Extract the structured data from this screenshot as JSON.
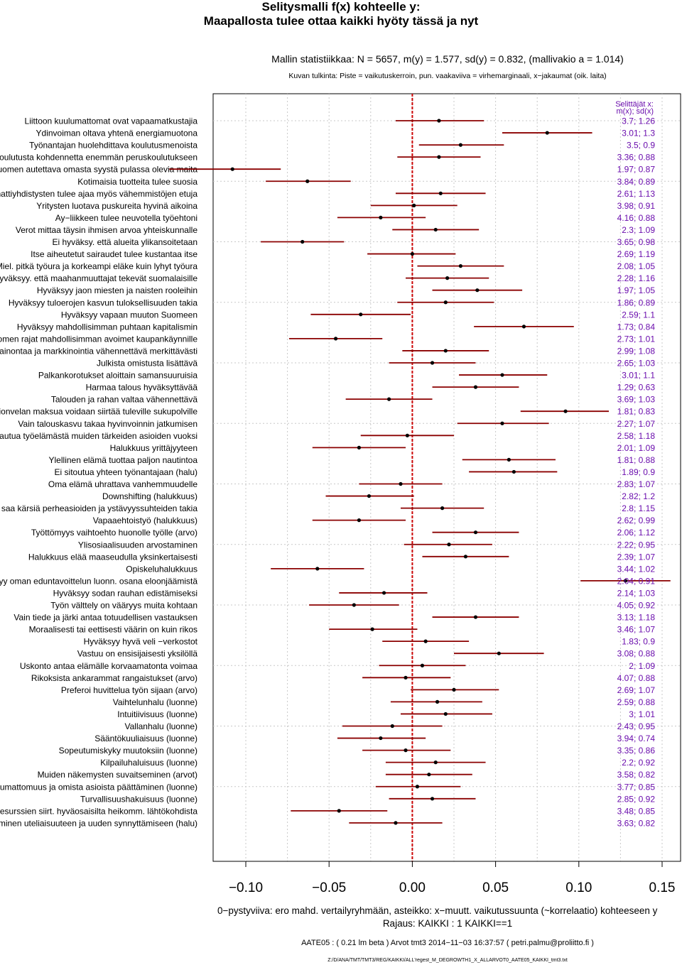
{
  "title": {
    "line1": "Selitysmalli f(x) kohteelle y:",
    "line2": "Maapallosta tulee ottaa kaikki hyöty tässä ja nyt"
  },
  "stats_line": "Mallin statistiikkaa: N = 5657, m(y) = 1.577, sd(y) = 0.832, (mallivakio a = 1.014)",
  "interpretation_line": "Kuvan tulkinta: Piste = vaikutuskerroin, pun. vaakaviiva = virhemarginaali, x−jakaumat (oik. laita)",
  "footer": {
    "line1": "0−pystyviiva: ero mahd. vertailyryhmään, asteikko: x−muutt. vaikutussuunta (~korrelaatio) kohteeseen y",
    "line2": "Rajaus: KAIKKI : 1  KAIKKI==1",
    "line3": "AATE05 : ( 0.21 lm beta )   Arvot tmt3 2014−11−03 16:37:57 ( petri.palmu@proliitto.fi )",
    "line4": "Z:/D/ANA/TMT/TMT3/REG/KAIKKI/ALL'regest_M_DEGROWTH1_X_ALLARVOT0_AATE05_KAIKKI_tmt3.txt"
  },
  "colors": {
    "ci_line": "#8b0000",
    "point": "#000000",
    "zero_line": "#cc0000",
    "stats_text": "#6a0dad",
    "grid": "#c8c8c8"
  },
  "chart_data": {
    "type": "forest",
    "xlim": [
      -0.105,
      0.155
    ],
    "xticks": [
      -0.1,
      -0.05,
      0.0,
      0.05,
      0.1,
      0.15
    ],
    "xtick_labels": [
      "−0.10",
      "−0.05",
      "0.00",
      "0.05",
      "0.10",
      "0.15"
    ],
    "reference_line": 0,
    "stats_header": [
      "Selittäjät x:",
      "m(x); sd(x)"
    ],
    "grid": true,
    "items": [
      {
        "label": "Liittoon kuulumattomat ovat vapaamatkustajia",
        "est": 0.016,
        "lo": -0.01,
        "hi": 0.043,
        "stats": "3.7; 1.26"
      },
      {
        "label": "Ydinvoiman oltava yhtenä energiamuotona",
        "est": 0.081,
        "lo": 0.054,
        "hi": 0.108,
        "stats": "3.01; 1.3"
      },
      {
        "label": "Työnantajan huolehdittava koulutusmenoista",
        "est": 0.029,
        "lo": 0.004,
        "hi": 0.055,
        "stats": "3.5; 0.9"
      },
      {
        "label": "Koulutusta kohdennetta enemmän peruskoulutukseen",
        "est": 0.016,
        "lo": -0.009,
        "hi": 0.041,
        "stats": "3.36; 0.88"
      },
      {
        "label": "Suomen autettava omasta syystä pulassa olevia maita",
        "est": -0.108,
        "lo": -0.146,
        "hi": -0.079,
        "stats": "1.97; 0.87"
      },
      {
        "label": "Kotimaisia tuotteita tulee suosia",
        "est": -0.063,
        "lo": -0.088,
        "hi": -0.037,
        "stats": "3.84; 0.89"
      },
      {
        "label": "Ammattiyhdistysten tulee ajaa myös vähemmistöjen etuja",
        "est": 0.017,
        "lo": -0.01,
        "hi": 0.044,
        "stats": "2.61; 1.13"
      },
      {
        "label": "Yritysten luotava puskureita hyvinä aikoina",
        "est": 0.001,
        "lo": -0.025,
        "hi": 0.027,
        "stats": "3.98; 0.91"
      },
      {
        "label": "Ay−liikkeen tulee neuvotella työehtoni",
        "est": -0.019,
        "lo": -0.045,
        "hi": 0.008,
        "stats": "4.16; 0.88"
      },
      {
        "label": "Verot mittaa täysin ihmisen arvoa yhteiskunnalle",
        "est": 0.014,
        "lo": -0.012,
        "hi": 0.04,
        "stats": "2.3; 1.09"
      },
      {
        "label": "Ei hyväksy. että alueita ylikansoitetaan",
        "est": -0.066,
        "lo": -0.091,
        "hi": -0.041,
        "stats": "3.65; 0.98"
      },
      {
        "label": "Itse aiheutetut sairaudet tulee kustantaa itse",
        "est": 0.0,
        "lo": -0.027,
        "hi": 0.026,
        "stats": "2.69; 1.19"
      },
      {
        "label": "Miel. pitkä työura ja korkeampi eläke kuin lyhyt työura",
        "est": 0.029,
        "lo": 0.003,
        "hi": 0.055,
        "stats": "2.08; 1.05"
      },
      {
        "label": "Hyväksyy. että maahanmuuttajat tekevät suomalaisille",
        "est": 0.021,
        "lo": -0.004,
        "hi": 0.046,
        "stats": "2.28; 1.16"
      },
      {
        "label": "Hyväksyy jaon miesten ja naisten rooleihin",
        "est": 0.039,
        "lo": 0.012,
        "hi": 0.066,
        "stats": "1.97; 1.05"
      },
      {
        "label": "Hyväksyy tuloerojen kasvun tuloksellisuuden takia",
        "est": 0.02,
        "lo": -0.009,
        "hi": 0.049,
        "stats": "1.86; 0.89"
      },
      {
        "label": "Hyväksyy vapaan muuton Suomeen",
        "est": -0.031,
        "lo": -0.061,
        "hi": -0.001,
        "stats": "2.59; 1.1"
      },
      {
        "label": "Hyväksyy mahdollisimman puhtaan kapitalismin",
        "est": 0.067,
        "lo": 0.037,
        "hi": 0.097,
        "stats": "1.73; 0.84"
      },
      {
        "label": "Suomen rajat mahdollisimman avoimet kaupankäynnille",
        "est": -0.046,
        "lo": -0.074,
        "hi": -0.018,
        "stats": "2.73; 1.01"
      },
      {
        "label": "Mainontaa ja markkinointia vähennettävä merkittävästi",
        "est": 0.02,
        "lo": -0.006,
        "hi": 0.046,
        "stats": "2.99; 1.08"
      },
      {
        "label": "Julkista omistusta lisättävä",
        "est": 0.012,
        "lo": -0.014,
        "hi": 0.038,
        "stats": "2.65; 1.03"
      },
      {
        "label": "Palkankorotukset aloittain samansuuruisia",
        "est": 0.054,
        "lo": 0.028,
        "hi": 0.081,
        "stats": "3.01; 1.1"
      },
      {
        "label": "Harmaa talous hyväksyttävää",
        "est": 0.038,
        "lo": 0.012,
        "hi": 0.064,
        "stats": "1.29; 0.63"
      },
      {
        "label": "Talouden ja rahan valtaa vähennettävä",
        "est": -0.014,
        "lo": -0.04,
        "hi": 0.012,
        "stats": "3.69; 1.03"
      },
      {
        "label": "Valtionvelan maksua voidaan siirtää tuleville sukupolville",
        "est": 0.092,
        "lo": 0.065,
        "hi": 0.118,
        "stats": "1.81; 0.83"
      },
      {
        "label": "Vain talouskasvu takaa hyvinvoinnin jatkumisen",
        "est": 0.054,
        "lo": 0.027,
        "hi": 0.082,
        "stats": "2.27; 1.07"
      },
      {
        "label": "Halukkuus irtautua työelämästä muiden tärkeiden asioiden vuoksi",
        "est": -0.003,
        "lo": -0.031,
        "hi": 0.025,
        "stats": "2.58; 1.18"
      },
      {
        "label": "Halukkuus yrittäjyyteen",
        "est": -0.032,
        "lo": -0.06,
        "hi": -0.004,
        "stats": "2.01; 1.09"
      },
      {
        "label": "Ylellinen elämä tuottaa paljon nautintoa",
        "est": 0.058,
        "lo": 0.03,
        "hi": 0.086,
        "stats": "1.81; 0.88"
      },
      {
        "label": "Ei sitoutua yhteen työnantajaan (halu)",
        "est": 0.061,
        "lo": 0.034,
        "hi": 0.087,
        "stats": "1.89; 0.9"
      },
      {
        "label": "Oma elämä uhrattava vanhemmuudelle",
        "est": -0.007,
        "lo": -0.032,
        "hi": 0.018,
        "stats": "2.83; 1.07"
      },
      {
        "label": "Downshifting (halukkuus)",
        "est": -0.026,
        "lo": -0.052,
        "hi": 0.001,
        "stats": "2.82; 1.2"
      },
      {
        "label": "Työ ei saa kärsiä perheasioiden ja ystävyyssuhteiden takia",
        "est": 0.018,
        "lo": -0.007,
        "hi": 0.043,
        "stats": "2.8; 1.15"
      },
      {
        "label": "Vapaaehtoistyö (halukkuus)",
        "est": -0.032,
        "lo": -0.06,
        "hi": -0.004,
        "stats": "2.62; 0.99"
      },
      {
        "label": "Työttömyys vaihtoehto huonolle työlle (arvo)",
        "est": 0.038,
        "lo": 0.012,
        "hi": 0.064,
        "stats": "2.06; 1.12"
      },
      {
        "label": "Ylisosiaalisuuden arvostaminen",
        "est": 0.022,
        "lo": -0.005,
        "hi": 0.048,
        "stats": "2.22; 0.95"
      },
      {
        "label": "Halukkuus elää maaseudulla yksinkertaisesti",
        "est": 0.032,
        "lo": 0.006,
        "hi": 0.058,
        "stats": "2.39; 1.07"
      },
      {
        "label": "Opiskeluhalukkuus",
        "est": -0.057,
        "lo": -0.085,
        "hi": -0.029,
        "stats": "3.44; 1.02"
      },
      {
        "label": "Hyväksyy oman eduntavoittelun luonn. osana eloonjäämistä",
        "est": 0.128,
        "lo": 0.101,
        "hi": 0.155,
        "stats": "2.04; 0.91"
      },
      {
        "label": "Hyväksyy sodan rauhan edistämiseksi",
        "est": -0.017,
        "lo": -0.044,
        "hi": 0.009,
        "stats": "2.14; 1.03"
      },
      {
        "label": "Työn vältte­ly on vääryys muita kohtaan",
        "est": -0.035,
        "lo": -0.062,
        "hi": -0.008,
        "stats": "4.05; 0.92"
      },
      {
        "label": "Vain tiede ja järki antaa totuudellisen vastauksen",
        "est": 0.038,
        "lo": 0.012,
        "hi": 0.064,
        "stats": "3.13; 1.18"
      },
      {
        "label": "Moraalisesti tai eettisesti väärin on kuin rikos",
        "est": -0.024,
        "lo": -0.05,
        "hi": 0.003,
        "stats": "3.46; 1.07"
      },
      {
        "label": "Hyväksyy hyvä veli −verkostot",
        "est": 0.008,
        "lo": -0.018,
        "hi": 0.034,
        "stats": "1.83; 0.9"
      },
      {
        "label": "Vastuu on ensisijaisesti yksilöllä",
        "est": 0.052,
        "lo": 0.025,
        "hi": 0.079,
        "stats": "3.08; 0.88"
      },
      {
        "label": "Uskonto antaa elämälle korvaamatonta voimaa",
        "est": 0.006,
        "lo": -0.02,
        "hi": 0.032,
        "stats": "2; 1.09"
      },
      {
        "label": "Rikoksista ankarammat rangaistukset (arvo)",
        "est": -0.004,
        "lo": -0.03,
        "hi": 0.023,
        "stats": "4.07; 0.88"
      },
      {
        "label": "Preferoi huvittelua työn sijaan (arvo)",
        "est": 0.025,
        "lo": -0.001,
        "hi": 0.052,
        "stats": "2.69; 1.07"
      },
      {
        "label": "Vaihtelunhalu (luonne)",
        "est": 0.015,
        "lo": -0.013,
        "hi": 0.042,
        "stats": "2.59; 0.88"
      },
      {
        "label": "Intuitiivisuus (luonne)",
        "est": 0.02,
        "lo": -0.007,
        "hi": 0.048,
        "stats": "3; 1.01"
      },
      {
        "label": "Vallanhalu (luonne)",
        "est": -0.012,
        "lo": -0.042,
        "hi": 0.018,
        "stats": "2.43; 0.95"
      },
      {
        "label": "Sääntökuuliaisuus (luonne)",
        "est": -0.019,
        "lo": -0.045,
        "hi": 0.008,
        "stats": "3.94; 0.74"
      },
      {
        "label": "Sopeutumiskyky muutoksiin (luonne)",
        "est": -0.004,
        "lo": -0.03,
        "hi": 0.023,
        "stats": "3.35; 0.86"
      },
      {
        "label": "Kilpailuhaluisuus (luonne)",
        "est": 0.014,
        "lo": -0.016,
        "hi": 0.044,
        "stats": "2.2; 0.92"
      },
      {
        "label": "Muiden näkemysten suvaitseminen (arvot)",
        "est": 0.01,
        "lo": -0.016,
        "hi": 0.036,
        "stats": "3.58; 0.82"
      },
      {
        "label": "Riippumattomuus ja omista asioista päättäminen (luonne)",
        "est": 0.003,
        "lo": -0.022,
        "hi": 0.029,
        "stats": "3.77; 0.85"
      },
      {
        "label": "Turvallisuushakuisuus (luonne)",
        "est": 0.012,
        "lo": -0.014,
        "hi": 0.038,
        "stats": "2.85; 0.92"
      },
      {
        "label": "Resurssien siirt. hyväosaisilta heikomm. lähtökohdista",
        "est": -0.044,
        "lo": -0.073,
        "hi": -0.015,
        "stats": "3.48; 0.85"
      },
      {
        "label": "Heittäytyminen uteliaisuuteen ja uuden synnyttämiseen (halu)",
        "est": -0.01,
        "lo": -0.038,
        "hi": 0.018,
        "stats": "3.63; 0.82"
      }
    ]
  }
}
